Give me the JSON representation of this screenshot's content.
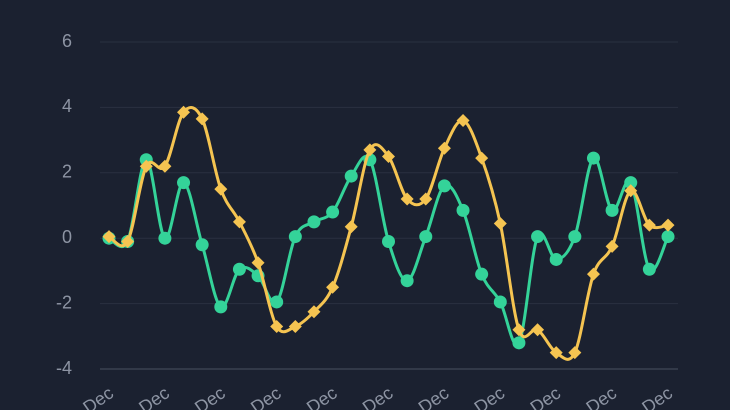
{
  "chart_data": {
    "type": "line",
    "categories": [
      "Dec",
      null,
      null,
      "Dec",
      null,
      null,
      "Dec",
      null,
      null,
      "Dec",
      null,
      null,
      "Dec",
      null,
      null,
      "Dec",
      null,
      null,
      "Dec",
      null,
      null,
      "Dec",
      null,
      null,
      "Dec",
      null,
      null,
      "Dec",
      null,
      null,
      "Dec"
    ],
    "series": [
      {
        "color": "#34d399",
        "marker": "circle",
        "values": [
          0,
          -0.1,
          2.4,
          0,
          1.7,
          -0.2,
          -2.1,
          -0.95,
          -1.15,
          -1.95,
          0.05,
          0.5,
          0.8,
          1.9,
          2.4,
          -0.1,
          -1.3,
          0.05,
          1.6,
          0.85,
          -1.1,
          -1.95,
          -3.2,
          0.05,
          -0.65,
          0.05,
          2.45,
          0.85,
          1.7,
          -0.95,
          0.05
        ]
      },
      {
        "color": "#f5c451",
        "marker": "diamond",
        "values": [
          0.05,
          -0.1,
          2.2,
          2.2,
          3.85,
          3.65,
          1.5,
          0.5,
          -0.75,
          -2.7,
          -2.7,
          -2.25,
          -1.5,
          0.35,
          2.7,
          2.5,
          1.2,
          1.2,
          2.75,
          3.6,
          2.45,
          0.45,
          -2.8,
          -2.8,
          -3.5,
          -3.5,
          -1.1,
          -0.25,
          1.45,
          0.4,
          0.4
        ]
      }
    ],
    "ylim": [
      -4,
      6
    ],
    "yticks": [
      -4,
      -2,
      0,
      2,
      4,
      6
    ],
    "grid": true,
    "smooth": true
  }
}
